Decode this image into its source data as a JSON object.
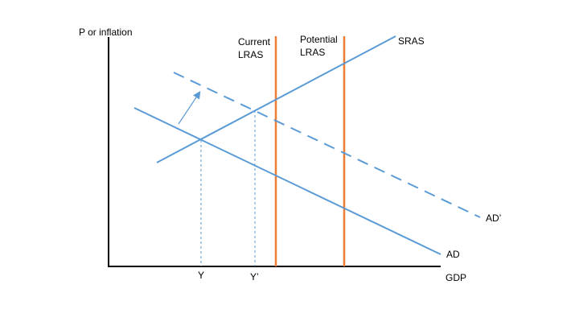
{
  "axes": {
    "y_label": "P or inflation",
    "x_label": "GDP"
  },
  "curves": {
    "sras": "SRAS",
    "ad": "AD",
    "ad_shifted": "AD’",
    "current_lras": [
      "Current",
      "LRAS"
    ],
    "potential_lras": [
      "Potential",
      "LRAS"
    ]
  },
  "markers": {
    "y": "Y",
    "y_prime": "Y’"
  },
  "colors": {
    "curve": "#5b9bd5",
    "lras": "#ed7d31",
    "axis": "#000000"
  }
}
